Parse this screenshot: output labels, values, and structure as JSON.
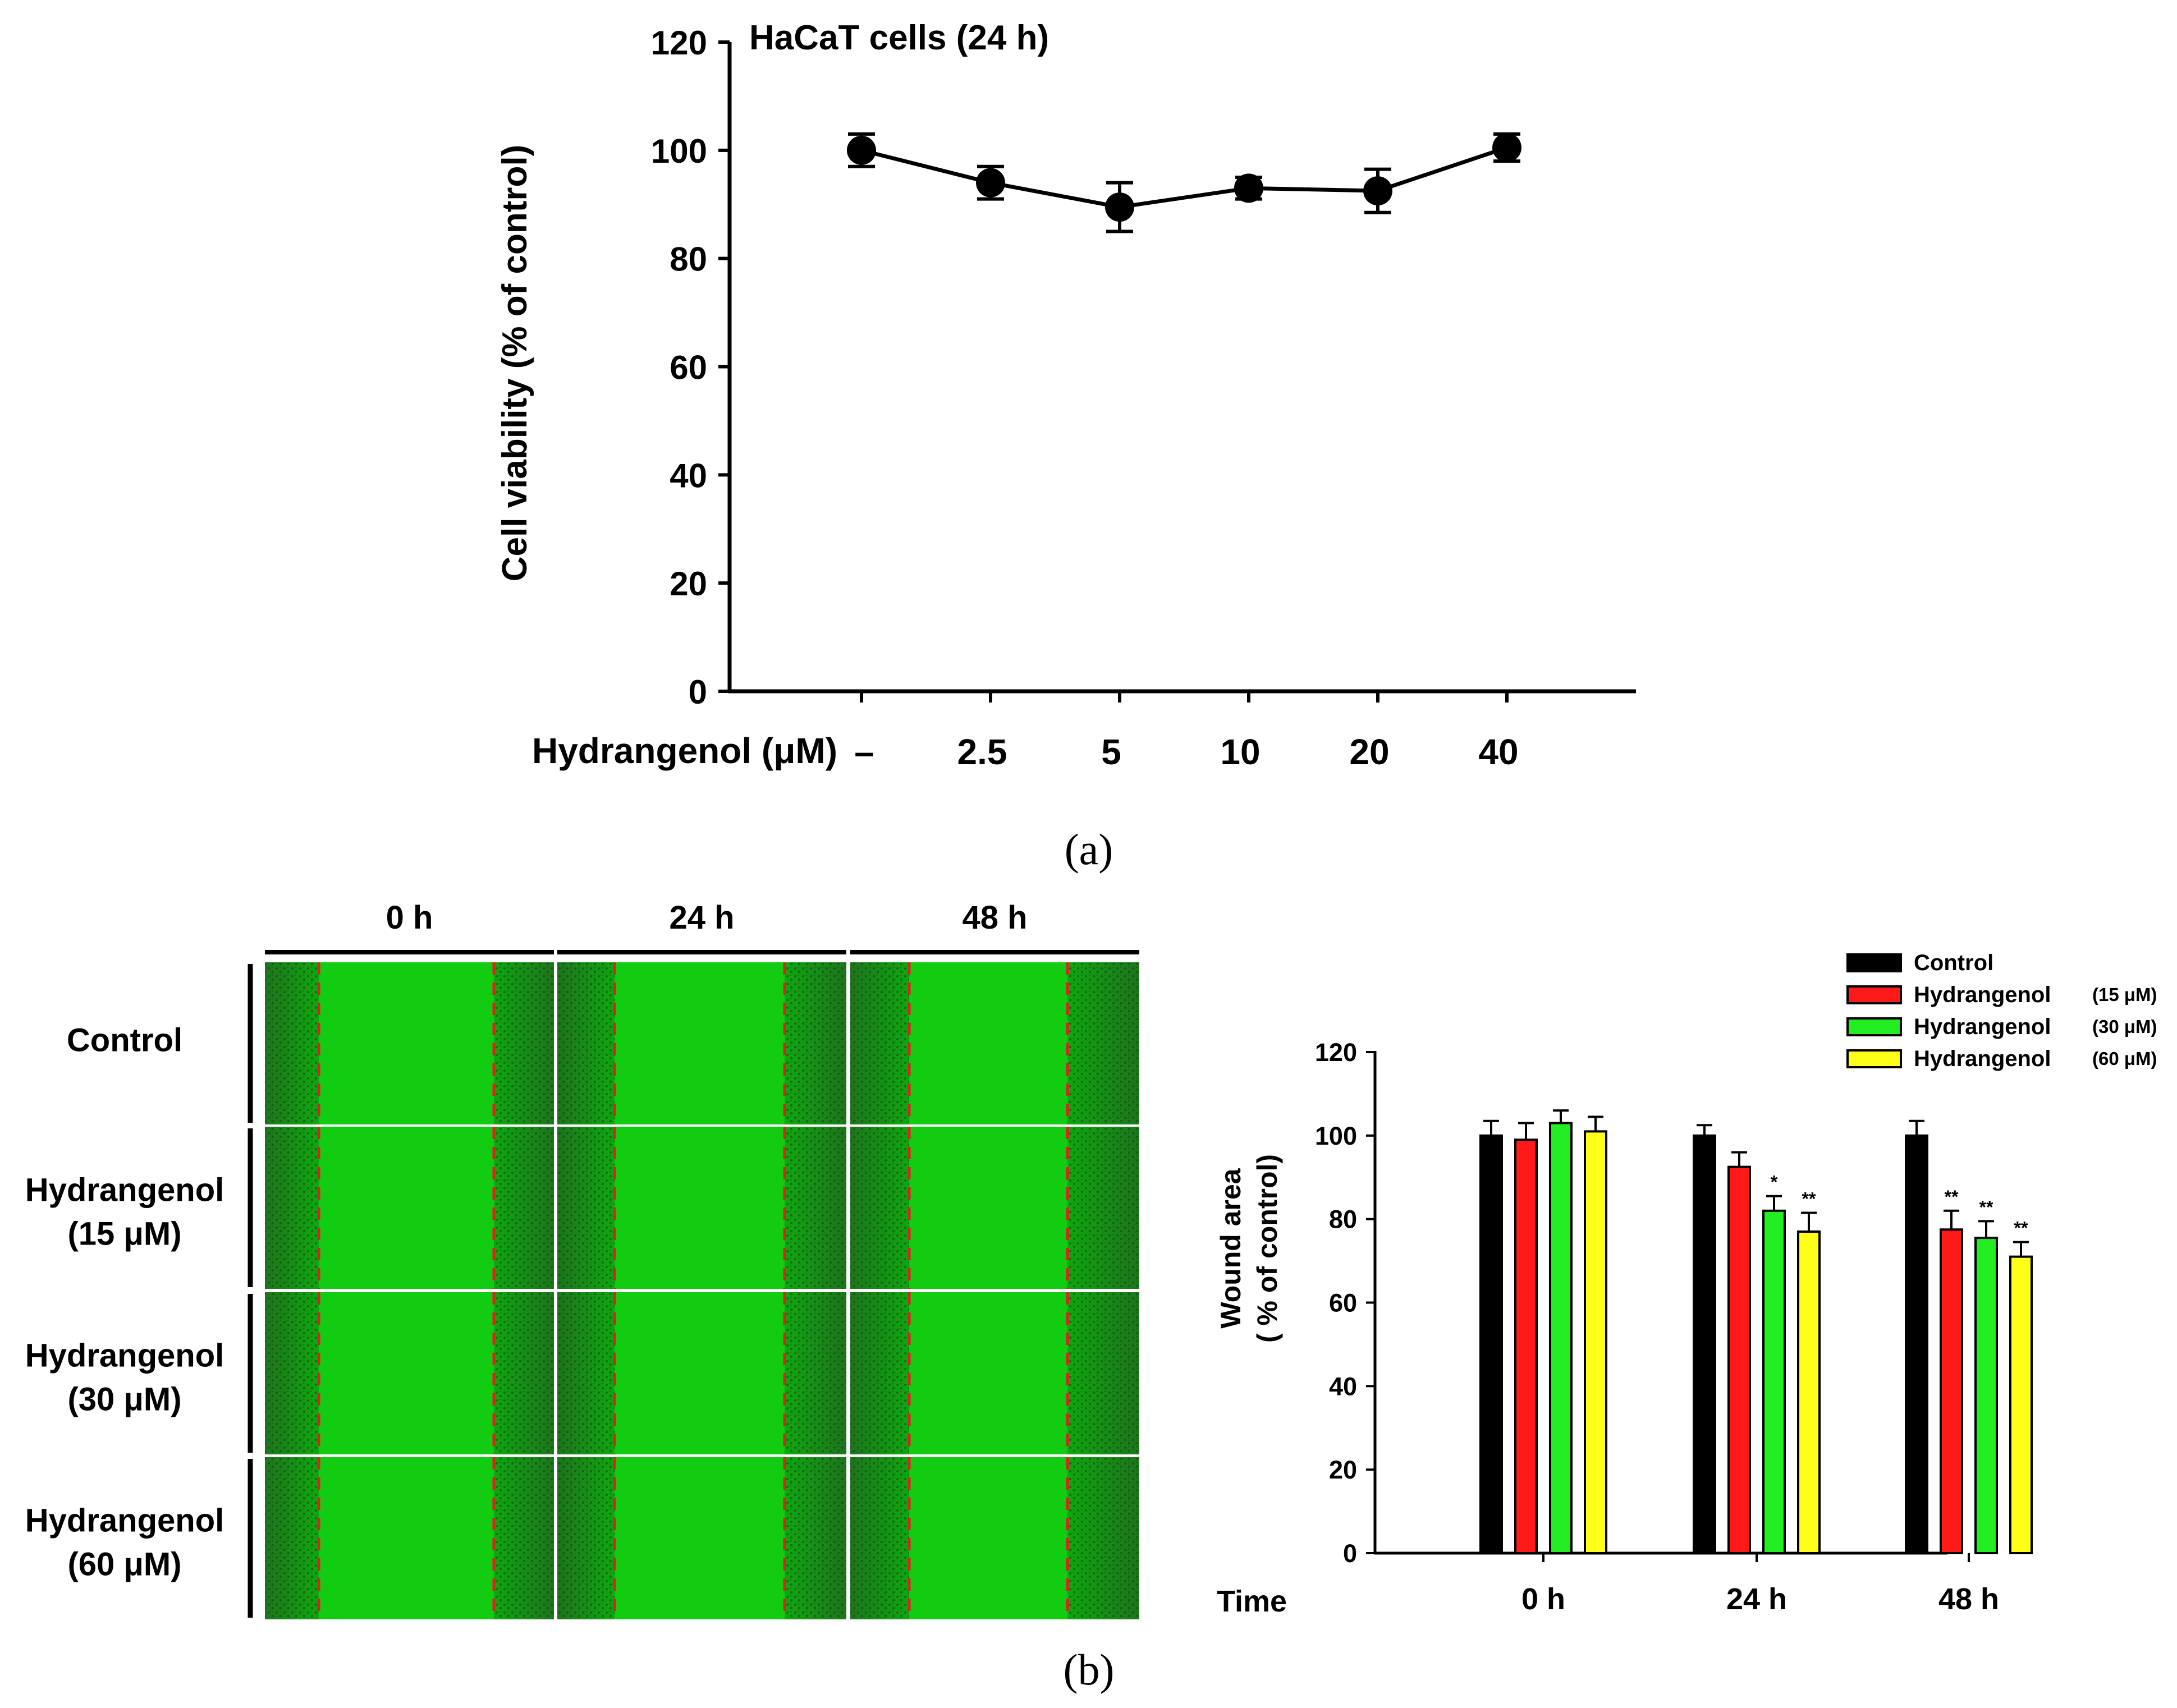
{
  "panels": {
    "a": {
      "label": "(a)"
    },
    "b": {
      "label": "(b)"
    }
  },
  "chart_data": [
    {
      "type": "line",
      "title": "HaCaT cells (24 h)",
      "ylabel": "Cell viability (% of control)",
      "xlabel": "Hydrangenol (μM)",
      "categories": [
        "–",
        "2.5",
        "5",
        "10",
        "20",
        "40"
      ],
      "values": [
        100,
        94,
        89.5,
        93,
        92.5,
        100.5
      ],
      "errors": [
        3,
        3,
        4.5,
        2,
        4,
        2.5
      ],
      "ylim": [
        0,
        120
      ],
      "yticks": [
        0,
        20,
        40,
        60,
        80,
        100,
        120
      ]
    },
    {
      "type": "image-grid",
      "columns": [
        "0 h",
        "24 h",
        "48 h"
      ],
      "rows": [
        {
          "line1": "Control",
          "line2": ""
        },
        {
          "line1": "Hydrangenol",
          "line2": "(15 μM)"
        },
        {
          "line1": "Hydrangenol",
          "line2": "(30 μM)"
        },
        {
          "line1": "Hydrangenol",
          "line2": "(60 μM)"
        }
      ]
    },
    {
      "type": "bar",
      "ylabel_line1": "Wound area",
      "ylabel_line2": "( % of control)",
      "xlabel": "Time",
      "categories": [
        "0 h",
        "24 h",
        "48 h"
      ],
      "ylim": [
        0,
        120
      ],
      "yticks": [
        0,
        20,
        40,
        60,
        80,
        100,
        120
      ],
      "series": [
        {
          "name": "Control",
          "dose": "",
          "color": "#000000",
          "values": [
            100,
            100,
            100
          ],
          "errors": [
            3.5,
            2.5,
            3.5
          ],
          "sig": [
            "",
            "",
            ""
          ]
        },
        {
          "name": "Hydrangenol",
          "dose": "(15 μM)",
          "color": "#ff1a1a",
          "values": [
            99,
            92.5,
            77.5
          ],
          "errors": [
            4,
            3.5,
            4.5
          ],
          "sig": [
            "",
            "",
            "**"
          ]
        },
        {
          "name": "Hydrangenol",
          "dose": "(30 μM)",
          "color": "#22ee22",
          "values": [
            103,
            82,
            75.5
          ],
          "errors": [
            3,
            3.5,
            4
          ],
          "sig": [
            "",
            "*",
            "**"
          ]
        },
        {
          "name": "Hydrangenol",
          "dose": "(60 μM)",
          "color": "#ffff1a",
          "values": [
            101,
            77,
            71
          ],
          "errors": [
            3.5,
            4.5,
            3.5
          ],
          "sig": [
            "",
            "**",
            "**"
          ]
        }
      ]
    }
  ]
}
